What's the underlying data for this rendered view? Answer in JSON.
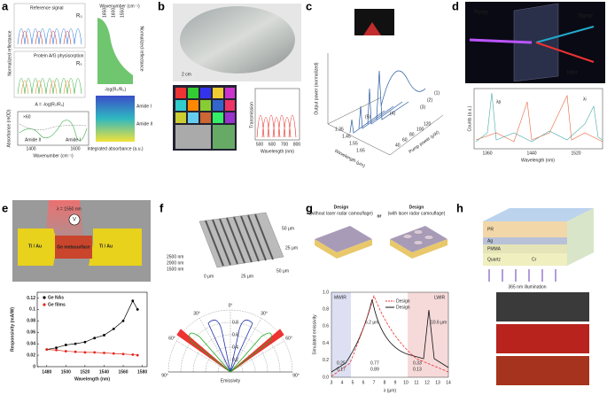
{
  "panels": {
    "a": {
      "label": "a",
      "reference": "Reference signal",
      "r0": "R₀",
      "protein": "Protein A/G physisorption",
      "rs": "Rₛ",
      "wavenumber": "Wavenumber (cm⁻¹)",
      "wn_ticks": [
        "1650",
        "1600",
        "1550"
      ],
      "norm_refl": "Normalized reflectance",
      "neglog": "-log(Rₛ/R₀)",
      "formula": "A = -log(Rₛ/R₀)",
      "amide1": "Amide I",
      "amide2": "Amide II",
      "integrated": "Integrated absorbance (a.u.)",
      "absorbance": "Absorbance (mOD)",
      "x60": "×60",
      "abs_ticks": [
        "1600",
        "1400"
      ]
    },
    "b": {
      "label": "b",
      "scale": "2 cm",
      "transmission": "Transmission",
      "wavelength": "Wavelength (nm)",
      "ticks": [
        "500",
        "600",
        "700",
        "800"
      ]
    },
    "c": {
      "label": "c",
      "output": "Output power (normalized)",
      "wavelength": "Wavelength (μm)",
      "wl_ticks": [
        "1.35",
        "1.45",
        "1.55",
        "1.65"
      ],
      "pump": "Pump power (μW)",
      "pump_ticks": [
        "120",
        "100",
        "80",
        "60",
        "40"
      ],
      "curves": [
        "(1)",
        "(2)",
        "(3)",
        "(4)",
        "(5)"
      ]
    },
    "d": {
      "label": "d",
      "pump": "Pump",
      "signal": "Signal",
      "idler": "Idler",
      "counts": "Counts (a.u.)",
      "wavelength": "Wavelength (nm)",
      "ticks": [
        "1360",
        "1440",
        "1520"
      ],
      "lp": "λp",
      "li": "λi"
    },
    "e": {
      "label": "e",
      "lambda": "λ = 1550 nm",
      "v": "V",
      "electrode_l": "Ti / Au",
      "electrode_r": "Ti / Au",
      "meta": "Ge metasurface",
      "chart": {
        "type": "scatter",
        "xlabel": "Wavelength (nm)",
        "ylabel": "Responsivity (mA/W)",
        "x": [
          1480,
          1490,
          1500,
          1510,
          1520,
          1530,
          1540,
          1550,
          1560,
          1570,
          1575
        ],
        "series": [
          {
            "name": "Ge NAs",
            "color": "#000000",
            "values": [
              0.03,
              0.033,
              0.038,
              0.04,
              0.043,
              0.05,
              0.055,
              0.066,
              0.08,
              0.115,
              0.1
            ]
          },
          {
            "name": "Ge films",
            "color": "#e3261c",
            "values": [
              0.03,
              0.029,
              0.027,
              0.026,
              0.025,
              0.025,
              0.024,
              0.023,
              0.022,
              0.021,
              0.02
            ]
          }
        ],
        "xlim": [
          1470,
          1585
        ],
        "ylim": [
          0,
          0.13
        ],
        "xticks": [
          1480,
          1500,
          1520,
          1540,
          1560,
          1580
        ],
        "yticks": [
          0,
          0.02,
          0.04,
          0.06,
          0.08,
          0.1,
          0.12
        ]
      }
    },
    "f": {
      "label": "f",
      "z": [
        "2500 nm",
        "2000 nm",
        "1500 nm"
      ],
      "x": [
        "0 μm",
        "25 μm",
        "50 μm"
      ],
      "y": [
        "50 μm",
        "25 μm"
      ],
      "angles": [
        "0°",
        "30°",
        "60°",
        "90°",
        "30°",
        "60°",
        "90°"
      ],
      "radii": [
        "0.8",
        "0.6",
        "0.4",
        "0.2"
      ],
      "emissivity": "Emissivity"
    },
    "g": {
      "label": "g",
      "design": "Design",
      "without": "(without laser radar camouflage)",
      "or": "or",
      "design2": "Design",
      "with": "(with laser radar camouflage)",
      "mwir": "MWIR",
      "lwir": "LWIR",
      "peak1": "6.2 μm",
      "peak2": "10.6 μm",
      "leg1": "Design",
      "leg2": "Design",
      "vals_black": [
        "0.25",
        "0.77",
        "0.33"
      ],
      "vals_red": [
        "0.17",
        "0.89",
        "0.13"
      ],
      "ylabel": "Simulated emissivity",
      "xlabel": "λ (μm)",
      "xticks": [
        "3",
        "4",
        "5",
        "6",
        "7",
        "8",
        "9",
        "10",
        "11",
        "12",
        "13",
        "14"
      ],
      "yticks": [
        "0.0",
        "0.2",
        "0.4",
        "0.6",
        "0.8",
        "1.0"
      ]
    },
    "h": {
      "label": "h",
      "layers": [
        "PR",
        "Ag",
        "PMMA"
      ],
      "quartz": "Quartz",
      "cr": "Cr",
      "illum": "365 nm illumination"
    }
  }
}
